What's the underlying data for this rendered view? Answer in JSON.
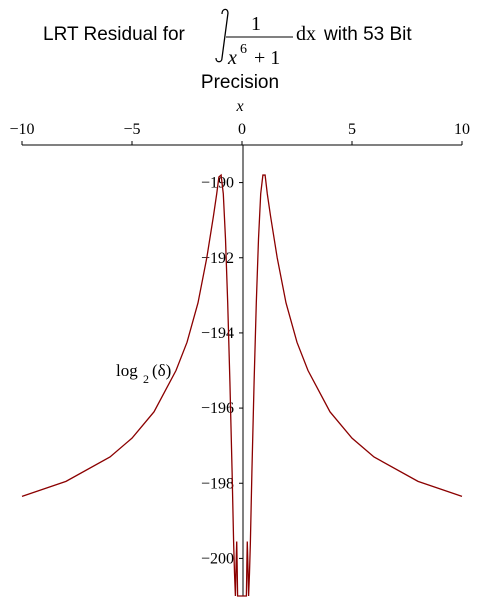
{
  "chart_data": {
    "type": "line",
    "title": {
      "prefix": "LRT Residual for",
      "numerator": "1",
      "denominator_base": "x",
      "denominator_exp": "6",
      "denominator_rest": "+ 1",
      "differential": "dx",
      "suffix": "with 53 Bit",
      "line2": "Precision"
    },
    "xlabel": "x",
    "ylabel": {
      "base": "log",
      "sub": "2",
      "arg": "(δ)"
    },
    "xlim": [
      -10,
      10
    ],
    "ylim": [
      -201,
      -189
    ],
    "x_ticks": [
      {
        "value": -10,
        "label": "−10"
      },
      {
        "value": -5,
        "label": "−5"
      },
      {
        "value": 0,
        "label": "0"
      },
      {
        "value": 5,
        "label": "5"
      },
      {
        "value": 10,
        "label": "10"
      }
    ],
    "y_ticks": [
      {
        "value": -190,
        "label": "−190"
      },
      {
        "value": -192,
        "label": "−192"
      },
      {
        "value": -194,
        "label": "−194"
      },
      {
        "value": -196,
        "label": "−196"
      },
      {
        "value": -198,
        "label": "−198"
      },
      {
        "value": -200,
        "label": "−200"
      }
    ],
    "line_color": "#8b0000",
    "grid": false,
    "series": [
      {
        "x": [
          -10,
          -8,
          -6,
          -5,
          -4,
          -3,
          -2.5,
          -2,
          -1.6,
          -1.3,
          -1.15,
          -1.05,
          -0.95,
          -0.85,
          -0.75,
          -0.65,
          -0.55,
          -0.45,
          -0.38,
          -0.34,
          -0.3,
          -0.27,
          -0.24,
          -0.22,
          -0.2,
          -0.12,
          0,
          0.12,
          0.2,
          0.22,
          0.24,
          0.27,
          0.3,
          0.34,
          0.38,
          0.45,
          0.55,
          0.65,
          0.75,
          0.85,
          0.95,
          1.05,
          1.15,
          1.3,
          1.6,
          2,
          2.5,
          3,
          4,
          5,
          6,
          8,
          10
        ],
        "y": [
          -198.35,
          -197.95,
          -197.3,
          -196.8,
          -196.1,
          -195.0,
          -194.25,
          -193.2,
          -192.0,
          -190.9,
          -190.3,
          -189.85,
          -189.8,
          -190.3,
          -191.5,
          -193.2,
          -195.3,
          -197.7,
          -199.6,
          -200.4,
          -201.0,
          -200.2,
          -199.55,
          -200.2,
          -201.0,
          -201.0,
          -201.0,
          -201.0,
          -201.0,
          -200.2,
          -199.55,
          -200.2,
          -201.0,
          -200.4,
          -199.6,
          -197.7,
          -195.3,
          -193.2,
          -191.5,
          -190.3,
          -189.8,
          -189.8,
          -190.3,
          -190.9,
          -192.0,
          -193.2,
          -194.25,
          -195.0,
          -196.1,
          -196.8,
          -197.3,
          -197.95,
          -198.35
        ]
      }
    ]
  }
}
